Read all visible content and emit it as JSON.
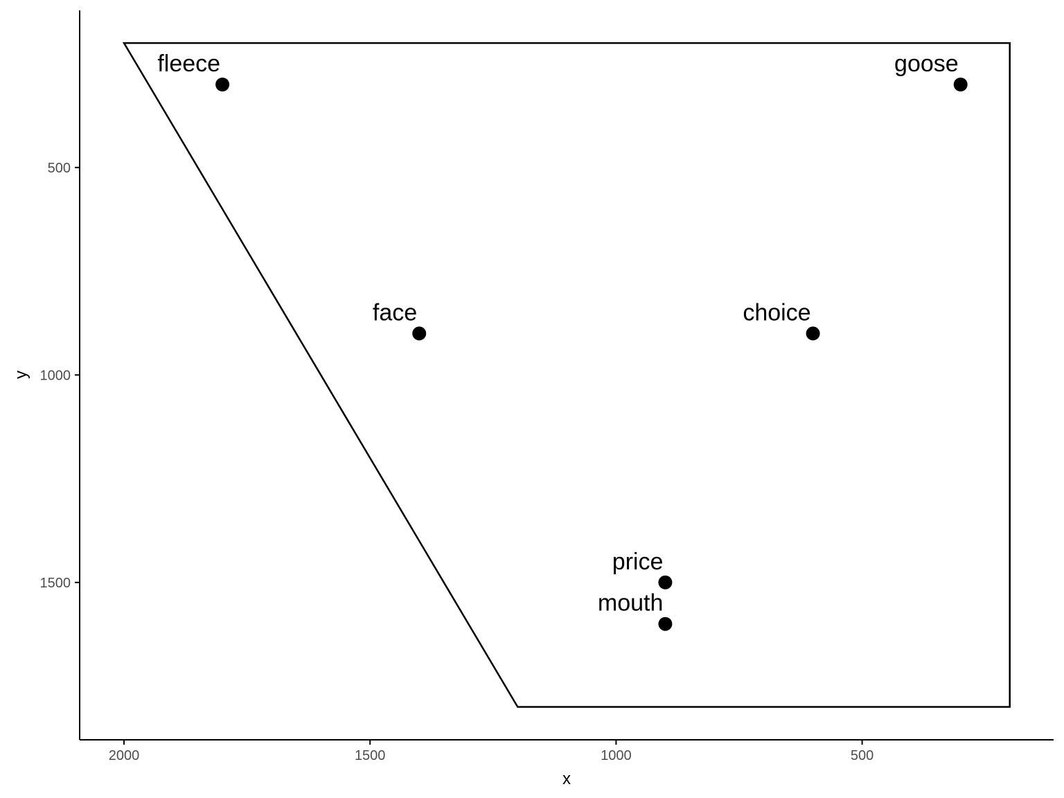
{
  "chart_data": {
    "type": "scatter",
    "title": "",
    "xlabel": "x",
    "ylabel": "y",
    "x_reversed": true,
    "y_reversed": true,
    "xlim": [
      2090,
      110
    ],
    "ylim": [
      -110,
      1650
    ],
    "x_ticks": [
      2000,
      1500,
      1000,
      500
    ],
    "y_ticks": [
      500,
      1000,
      1500
    ],
    "x_tick_labels": [
      "2000",
      "1500",
      "1000",
      "500"
    ],
    "y_tick_labels": [
      "500",
      "1000",
      "1500"
    ],
    "grid": false,
    "legend": "none",
    "points": [
      {
        "label": "fleece",
        "x": 1800,
        "y": 300
      },
      {
        "label": "goose",
        "x": 300,
        "y": 300
      },
      {
        "label": "face",
        "x": 1400,
        "y": 900
      },
      {
        "label": "choice",
        "x": 600,
        "y": 900
      },
      {
        "label": "price",
        "x": 900,
        "y": 1500
      },
      {
        "label": "mouth",
        "x": 900,
        "y": 1600
      }
    ],
    "polygon": [
      {
        "x": 2000,
        "y": 200
      },
      {
        "x": 200,
        "y": 200
      },
      {
        "x": 200,
        "y": 1800
      },
      {
        "x": 1200,
        "y": 1800
      }
    ],
    "point_color": "#000000",
    "line_color": "#000000"
  }
}
